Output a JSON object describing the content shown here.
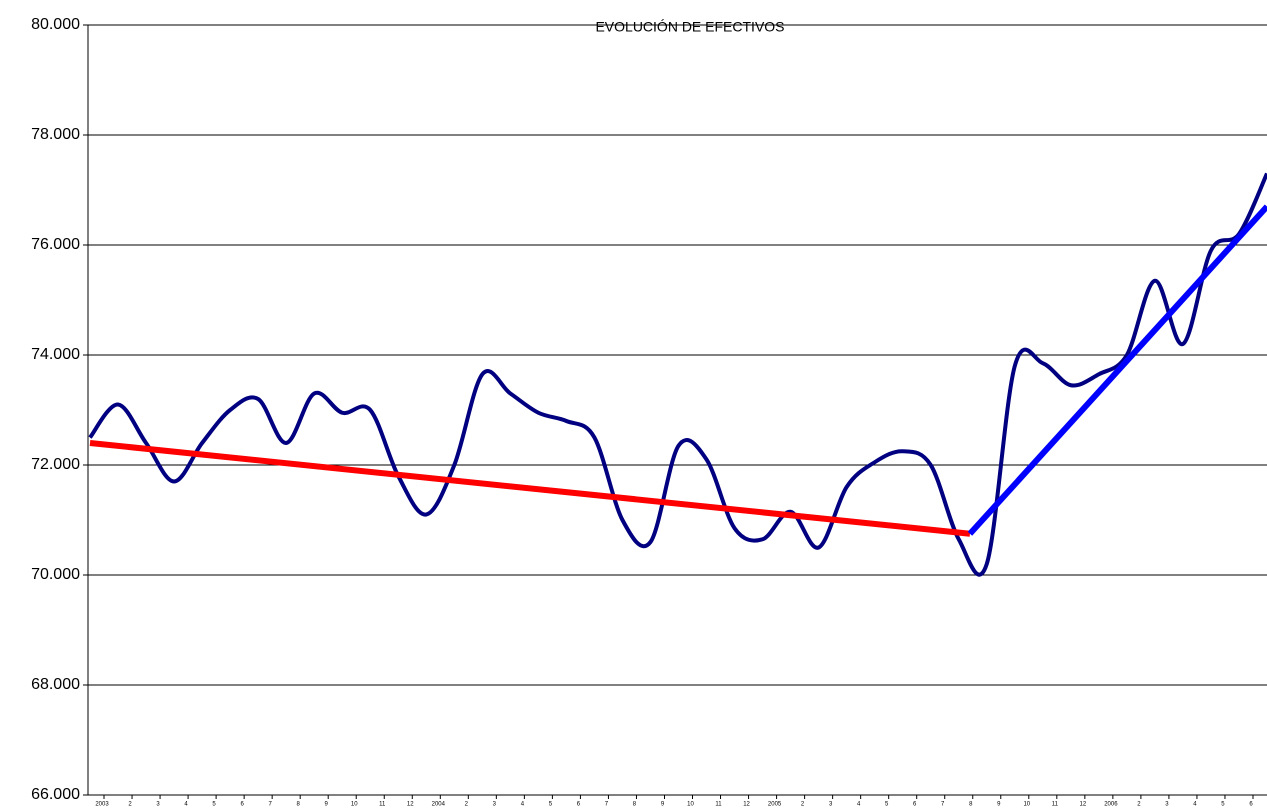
{
  "chart_data": {
    "type": "line",
    "title": "EVOLUCIÓN DE EFECTIVOS",
    "categories": [
      "2003",
      "2",
      "3",
      "4",
      "5",
      "6",
      "7",
      "8",
      "9",
      "10",
      "11",
      "12",
      "2004",
      "2",
      "3",
      "4",
      "5",
      "6",
      "7",
      "8",
      "9",
      "10",
      "11",
      "12",
      "2005",
      "2",
      "3",
      "4",
      "5",
      "6",
      "7",
      "8",
      "9",
      "10",
      "11",
      "12",
      "2006",
      "2",
      "3",
      "4",
      "5",
      "6",
      null
    ],
    "series": [
      {
        "color": "#000080",
        "values": [
          72500,
          73100,
          72400,
          71700,
          72400,
          73000,
          73200,
          72400,
          73300,
          72950,
          73000,
          71800,
          71100,
          72000,
          73650,
          73300,
          72950,
          72800,
          72500,
          71000,
          70600,
          72350,
          72100,
          70850,
          70650,
          71150,
          70500,
          71600,
          72050,
          72250,
          72000,
          70650,
          70200,
          73800,
          73850,
          73450,
          73650,
          74000,
          75350,
          74200,
          75900,
          76200,
          77300
        ]
      }
    ],
    "trends": [
      {
        "color": "#ff0000",
        "x": [
          0,
          31.4
        ],
        "values": [
          72400,
          70750
        ]
      },
      {
        "color": "#0000ff",
        "x": [
          31.4,
          42
        ],
        "values": [
          70750,
          76700
        ]
      }
    ],
    "ylim": [
      66000,
      80000
    ],
    "yticks": [
      {
        "value": 66000,
        "label": "66.000"
      },
      {
        "value": 68000,
        "label": "68.000"
      },
      {
        "value": 70000,
        "label": "70.000"
      },
      {
        "value": 72000,
        "label": "72.000"
      },
      {
        "value": 74000,
        "label": "74.000"
      },
      {
        "value": 76000,
        "label": "76.000"
      },
      {
        "value": 78000,
        "label": "78.000"
      },
      {
        "value": 80000,
        "label": "80.000"
      }
    ],
    "grid": true
  }
}
